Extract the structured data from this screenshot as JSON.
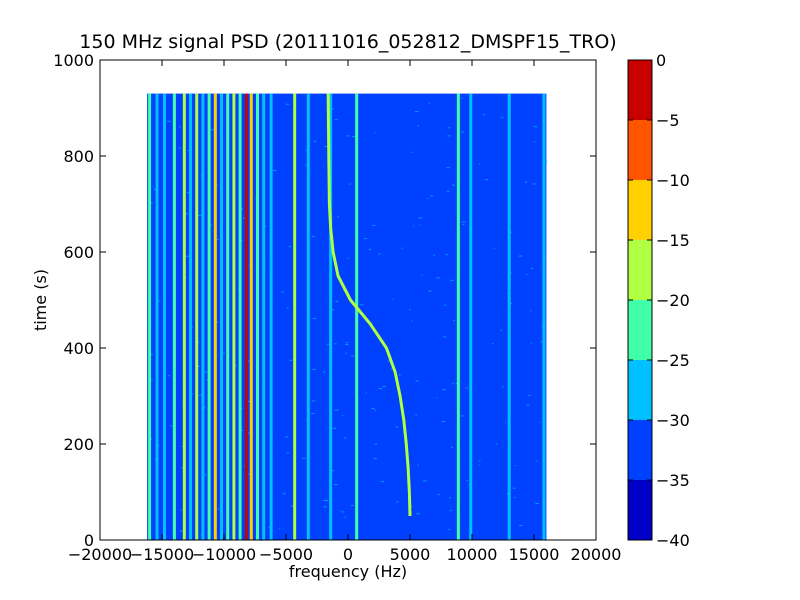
{
  "chart_data": {
    "type": "heatmap",
    "title": "150 MHz signal PSD (20111016_052812_DMSPF15_TRO)",
    "xlabel": "frequency (Hz)",
    "ylabel": "time (s)",
    "xlim": [
      -20000,
      20000
    ],
    "ylim": [
      0,
      1000
    ],
    "xticks": [
      -20000,
      -15000,
      -10000,
      -5000,
      0,
      5000,
      10000,
      15000,
      20000
    ],
    "yticks": [
      0,
      200,
      400,
      600,
      800,
      1000
    ],
    "data_extent": {
      "freq": [
        -16200,
        16000
      ],
      "time": [
        0,
        930
      ]
    },
    "colorbar": {
      "range": [
        -40,
        0
      ],
      "ticks": [
        -40,
        -35,
        -30,
        -25,
        -20,
        -15,
        -10,
        -5,
        0
      ],
      "levels": [
        {
          "from": -40,
          "to": -35,
          "color": "#0000c8"
        },
        {
          "from": -35,
          "to": -30,
          "color": "#0040ff"
        },
        {
          "from": -30,
          "to": -25,
          "color": "#00c0ff"
        },
        {
          "from": -25,
          "to": -20,
          "color": "#40ffa8"
        },
        {
          "from": -20,
          "to": -15,
          "color": "#b0ff40"
        },
        {
          "from": -15,
          "to": -10,
          "color": "#ffd000"
        },
        {
          "from": -10,
          "to": -5,
          "color": "#ff5400"
        },
        {
          "from": -5,
          "to": 0,
          "color": "#c80000"
        }
      ]
    },
    "background_level": -32,
    "lines": [
      {
        "freq": -16000,
        "level": -22
      },
      {
        "freq": -15400,
        "level": -28
      },
      {
        "freq": -14800,
        "level": -27
      },
      {
        "freq": -14000,
        "level": -24
      },
      {
        "freq": -13200,
        "level": -18
      },
      {
        "freq": -12700,
        "level": -26
      },
      {
        "freq": -12200,
        "level": -19
      },
      {
        "freq": -11700,
        "level": -27
      },
      {
        "freq": -11200,
        "level": -23
      },
      {
        "freq": -10700,
        "level": -13
      },
      {
        "freq": -10200,
        "level": -26
      },
      {
        "freq": -9700,
        "level": -22
      },
      {
        "freq": -9200,
        "level": -16
      },
      {
        "freq": -8700,
        "level": -24
      },
      {
        "freq": -8200,
        "level": -4
      },
      {
        "freq": -7800,
        "level": -12
      },
      {
        "freq": -7300,
        "level": -22
      },
      {
        "freq": -6800,
        "level": -26
      },
      {
        "freq": -6200,
        "level": -27
      },
      {
        "freq": -4300,
        "level": -18
      },
      {
        "freq": -3200,
        "level": -27
      },
      {
        "freq": -1400,
        "level": -26
      },
      {
        "freq": 700,
        "level": -24
      },
      {
        "freq": 8900,
        "level": -22
      },
      {
        "freq": 9900,
        "level": -27
      },
      {
        "freq": 13000,
        "level": -26
      },
      {
        "freq": 15800,
        "level": -28
      }
    ],
    "doppler_trace": {
      "level": -20,
      "points": [
        {
          "time": 50,
          "freq": 5000
        },
        {
          "time": 100,
          "freq": 4950
        },
        {
          "time": 150,
          "freq": 4850
        },
        {
          "time": 200,
          "freq": 4700
        },
        {
          "time": 250,
          "freq": 4500
        },
        {
          "time": 300,
          "freq": 4200
        },
        {
          "time": 350,
          "freq": 3800
        },
        {
          "time": 400,
          "freq": 3100
        },
        {
          "time": 450,
          "freq": 1800
        },
        {
          "time": 500,
          "freq": 200
        },
        {
          "time": 550,
          "freq": -800
        },
        {
          "time": 600,
          "freq": -1200
        },
        {
          "time": 650,
          "freq": -1400
        },
        {
          "time": 700,
          "freq": -1500
        },
        {
          "time": 800,
          "freq": -1550
        },
        {
          "time": 930,
          "freq": -1600
        }
      ]
    }
  }
}
